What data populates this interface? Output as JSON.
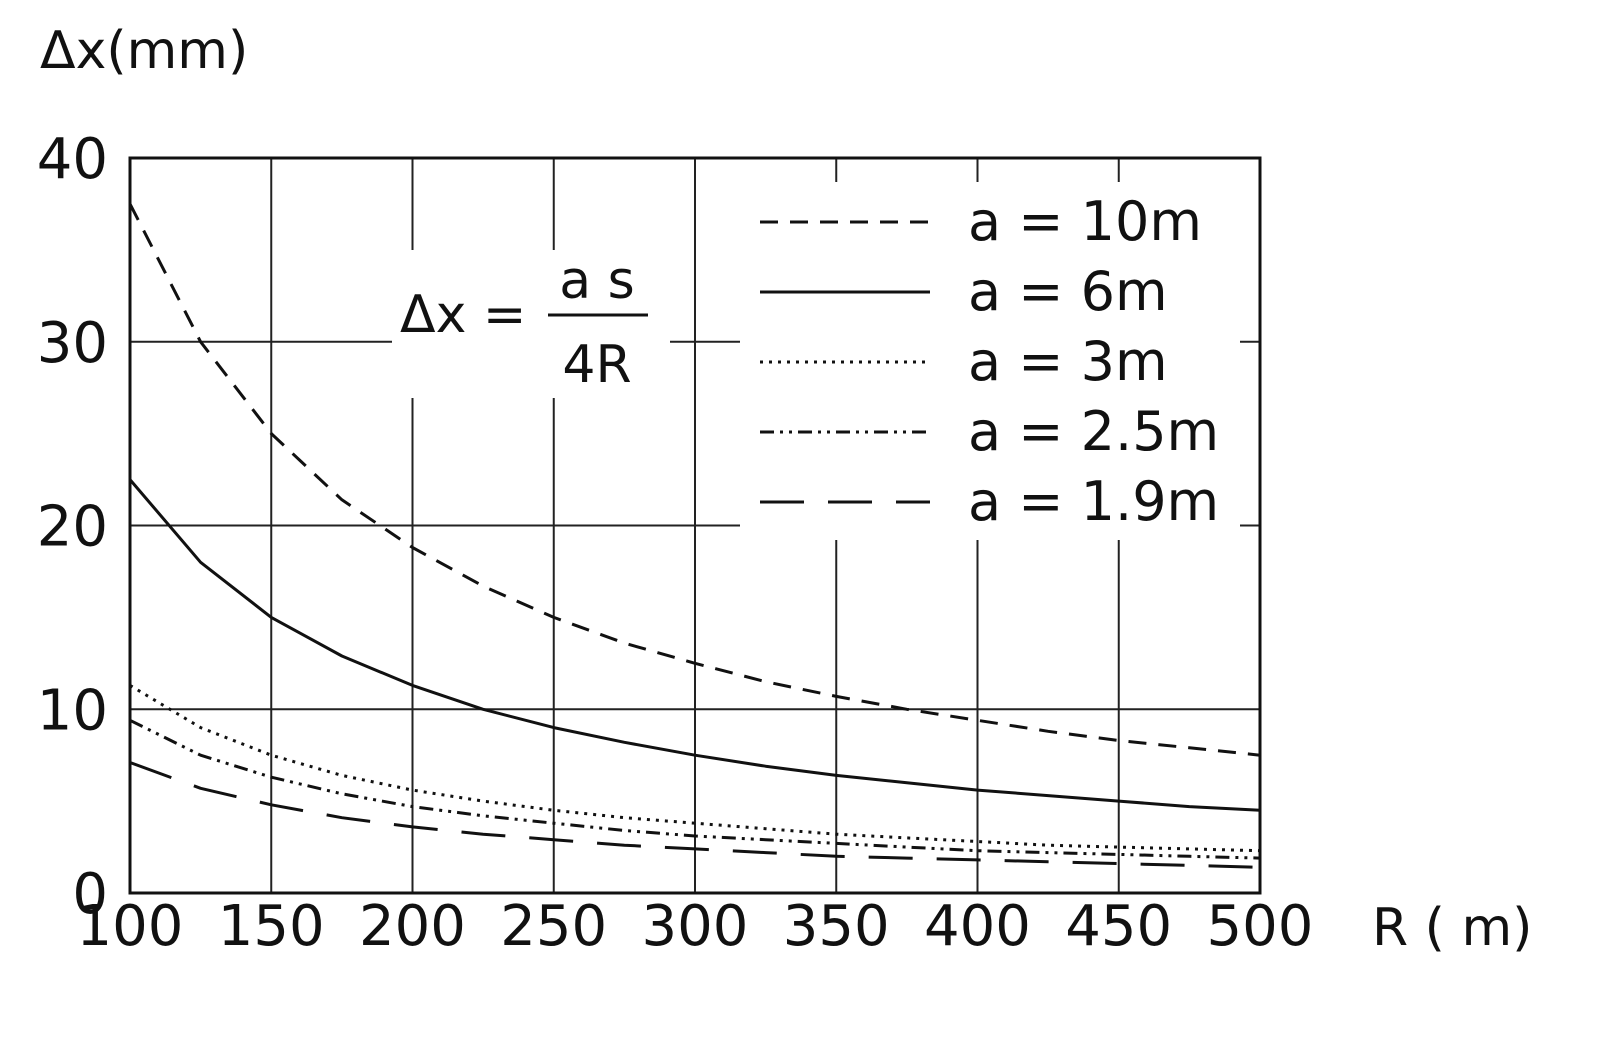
{
  "chart_data": {
    "type": "line",
    "xlabel": "R ( m)",
    "ylabel": "Δx(mm)",
    "xlim": [
      100,
      500
    ],
    "ylim": [
      0,
      40
    ],
    "x_ticks": [
      100,
      150,
      200,
      250,
      300,
      350,
      400,
      450,
      500
    ],
    "y_ticks": [
      0,
      10,
      20,
      30,
      40
    ],
    "grid": true,
    "legend_position": "top-right",
    "annotation": {
      "lhs": "Δx =",
      "numerator": "a s",
      "denominator": "4R"
    },
    "x": [
      100,
      125,
      150,
      175,
      200,
      225,
      250,
      275,
      300,
      325,
      350,
      375,
      400,
      425,
      450,
      475,
      500
    ],
    "series": [
      {
        "name": "a = 10m",
        "dash": "18,12",
        "values": [
          37.5,
          30.0,
          25.0,
          21.4,
          18.8,
          16.7,
          15.0,
          13.6,
          12.5,
          11.5,
          10.7,
          10.0,
          9.4,
          8.8,
          8.3,
          7.9,
          7.5
        ]
      },
      {
        "name": "a = 6m",
        "dash": "",
        "values": [
          22.5,
          18.0,
          15.0,
          12.9,
          11.3,
          10.0,
          9.0,
          8.2,
          7.5,
          6.9,
          6.4,
          6.0,
          5.6,
          5.3,
          5.0,
          4.7,
          4.5
        ]
      },
      {
        "name": "a = 3m",
        "dash": "3,6",
        "values": [
          11.3,
          9.0,
          7.5,
          6.4,
          5.6,
          5.0,
          4.5,
          4.1,
          3.8,
          3.5,
          3.2,
          3.0,
          2.8,
          2.6,
          2.5,
          2.4,
          2.3
        ]
      },
      {
        "name": "a = 2.5m",
        "dash": "14,6,3,6,3,6",
        "values": [
          9.4,
          7.5,
          6.3,
          5.4,
          4.7,
          4.2,
          3.8,
          3.4,
          3.1,
          2.9,
          2.7,
          2.5,
          2.3,
          2.2,
          2.1,
          2.0,
          1.9
        ]
      },
      {
        "name": "a = 1.9m",
        "dash": "44,24",
        "values": [
          7.1,
          5.7,
          4.8,
          4.1,
          3.6,
          3.2,
          2.9,
          2.6,
          2.4,
          2.2,
          2.0,
          1.9,
          1.8,
          1.7,
          1.6,
          1.5,
          1.4
        ]
      }
    ]
  }
}
